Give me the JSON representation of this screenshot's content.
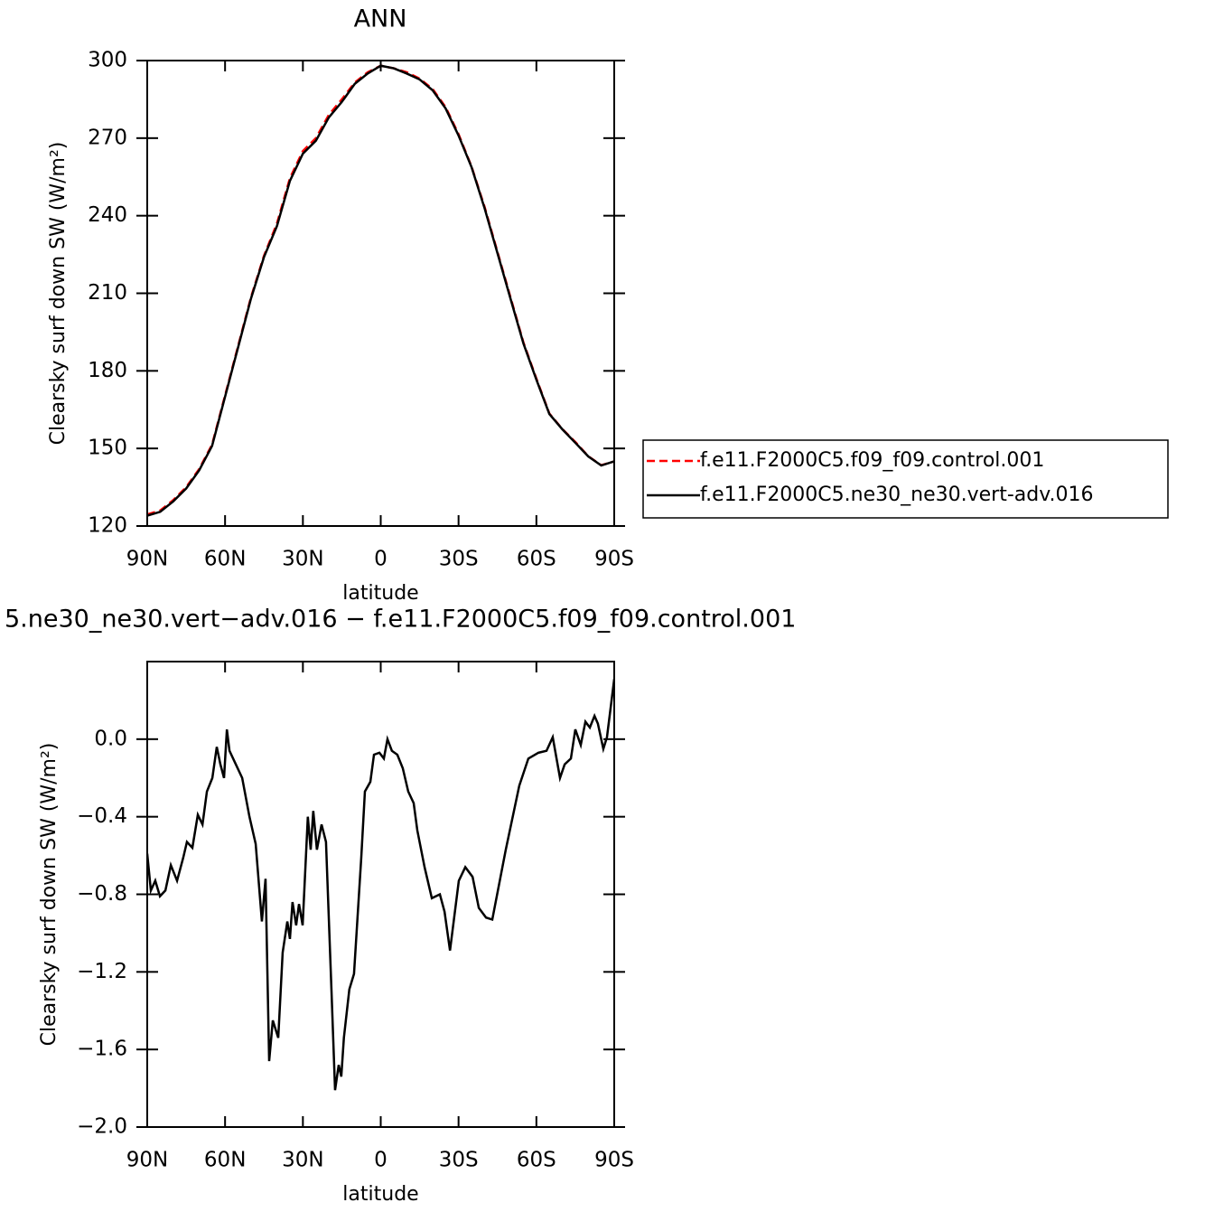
{
  "chart_data": [
    {
      "type": "line",
      "title": "ANN",
      "xlabel": "latitude",
      "ylabel": "Clearsky surf down SW (W/m²)",
      "x": [
        90,
        85,
        80,
        75,
        70,
        65,
        60,
        55,
        50,
        45,
        40,
        35,
        30,
        25,
        20,
        15,
        10,
        5,
        0,
        -5,
        -10,
        -15,
        -20,
        -25,
        -30,
        -35,
        -40,
        -45,
        -50,
        -55,
        -60,
        -65,
        -70,
        -75,
        -80,
        -85,
        -90
      ],
      "series": [
        {
          "name": "f.e11.F2000C5.f09_f09.control.001",
          "color": "#ff0000",
          "linestyle": "dashed",
          "values": [
            124.5,
            126,
            130,
            135,
            142,
            151.5,
            170.5,
            189.5,
            208.5,
            224.5,
            237,
            254.5,
            265,
            270,
            279,
            285,
            291.5,
            295.5,
            298,
            297,
            295.5,
            293,
            289,
            282,
            271.5,
            259,
            243.5,
            226,
            208.5,
            191,
            177,
            163.5,
            157.5,
            152.5,
            147,
            143.5,
            145
          ]
        },
        {
          "name": "f.e11.F2000C5.ne30_ne30.vert-adv.016",
          "color": "#000000",
          "linestyle": "solid",
          "values": [
            124,
            125.5,
            129.5,
            134.5,
            141.5,
            151,
            170,
            189,
            208,
            224,
            236,
            253.5,
            264,
            269,
            278,
            284,
            291,
            295,
            298,
            297,
            295,
            292.7,
            288.5,
            281.5,
            271,
            258.8,
            243,
            225.5,
            208,
            190.6,
            176.6,
            163.3,
            157.4,
            152.2,
            146.9,
            143.4,
            145
          ]
        }
      ],
      "xlim": [
        90,
        -90
      ],
      "xticks": [
        {
          "value": 90,
          "label": "90N"
        },
        {
          "value": 60,
          "label": "60N"
        },
        {
          "value": 30,
          "label": "30N"
        },
        0,
        {
          "value": -30,
          "label": "30S"
        },
        {
          "value": -60,
          "label": "60S"
        },
        {
          "value": -90,
          "label": "90S"
        }
      ],
      "ylim": [
        120,
        300
      ],
      "yticks": [
        120,
        150,
        180,
        210,
        240,
        270,
        300
      ],
      "legend": "right"
    },
    {
      "type": "line",
      "title": "5.ne30_ne30.vert−adv.016 − f.e11.F2000C5.f09_f09.control.001",
      "xlabel": "latitude",
      "ylabel": "Clearsky surf down SW (W/m²)",
      "x": [
        90,
        88.6,
        86.9,
        85.1,
        83.0,
        80.9,
        78.5,
        76.1,
        74.7,
        72.6,
        70.5,
        68.7,
        67.0,
        64.9,
        63.2,
        61.8,
        60.4,
        59.3,
        58.3,
        56.2,
        53.4,
        50.6,
        48.2,
        45.8,
        44.4,
        43.0,
        41.6,
        39.5,
        37.8,
        36.0,
        35.0,
        34.0,
        32.6,
        31.5,
        30.1,
        28.1,
        27.0,
        26.0,
        24.6,
        22.8,
        21.1,
        19.0,
        17.6,
        16.2,
        15.2,
        14.2,
        12.1,
        10.3,
        7.5,
        6.1,
        4.0,
        2.6,
        0.5,
        -1.2,
        -2.6,
        -4.3,
        -6.4,
        -8.5,
        -10.6,
        -12.7,
        -14.1,
        -16.9,
        -19.7,
        -22.8,
        -24.6,
        -26.7,
        -30.1,
        -32.6,
        -35.4,
        -37.8,
        -40.6,
        -43.0,
        -48.2,
        -53.4,
        -56.9,
        -60.8,
        -63.9,
        -66.3,
        -69.1,
        -70.9,
        -73.3,
        -75.0,
        -77.1,
        -78.9,
        -80.6,
        -82.4,
        -83.7,
        -85.8,
        -87.2,
        -90
      ],
      "series": [
        {
          "color": "#000000",
          "values": [
            -0.59,
            -0.78,
            -0.73,
            -0.81,
            -0.78,
            -0.65,
            -0.73,
            -0.61,
            -0.53,
            -0.56,
            -0.39,
            -0.44,
            -0.27,
            -0.2,
            -0.04,
            -0.13,
            -0.2,
            0.05,
            -0.06,
            -0.12,
            -0.2,
            -0.4,
            -0.54,
            -0.94,
            -0.72,
            -1.66,
            -1.45,
            -1.54,
            -1.1,
            -0.94,
            -1.03,
            -0.84,
            -0.96,
            -0.85,
            -0.96,
            -0.4,
            -0.57,
            -0.37,
            -0.57,
            -0.44,
            -0.53,
            -1.29,
            -1.81,
            -1.68,
            -1.74,
            -1.54,
            -1.29,
            -1.21,
            -0.61,
            -0.27,
            -0.22,
            -0.08,
            -0.07,
            -0.1,
            0.0,
            -0.06,
            -0.08,
            -0.15,
            -0.27,
            -0.33,
            -0.47,
            -0.66,
            -0.82,
            -0.8,
            -0.89,
            -1.09,
            -0.73,
            -0.66,
            -0.71,
            -0.87,
            -0.92,
            -0.93,
            -0.57,
            -0.24,
            -0.1,
            -0.07,
            -0.06,
            0.01,
            -0.2,
            -0.13,
            -0.1,
            0.05,
            -0.03,
            0.09,
            0.06,
            0.12,
            0.08,
            -0.05,
            0.01,
            0.31
          ]
        }
      ],
      "xlim": [
        90,
        -90
      ],
      "xticks": [
        {
          "value": 90,
          "label": "90N"
        },
        {
          "value": 60,
          "label": "60N"
        },
        {
          "value": 30,
          "label": "30N"
        },
        0,
        {
          "value": -30,
          "label": "30S"
        },
        {
          "value": -60,
          "label": "60S"
        },
        {
          "value": -90,
          "label": "90S"
        }
      ],
      "ylim": [
        -2.0,
        0.4
      ],
      "yticks": [
        {
          "value": -2.0,
          "label": "−2.0"
        },
        {
          "value": -1.6,
          "label": "−1.6"
        },
        {
          "value": -1.2,
          "label": "−1.2"
        },
        {
          "value": -0.8,
          "label": "−0.8"
        },
        {
          "value": -0.4,
          "label": "−0.4"
        },
        {
          "value": 0,
          "label": "0.0"
        }
      ]
    }
  ]
}
